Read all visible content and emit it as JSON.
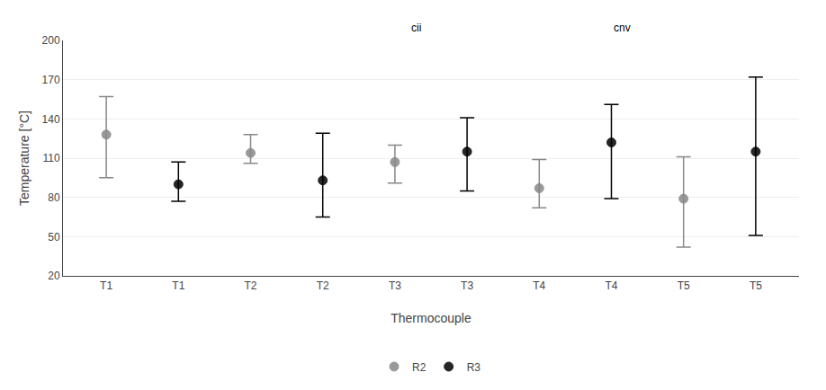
{
  "chart_data": {
    "type": "range",
    "xlabel": "Thermocouple",
    "ylabel": "Temperature [°C]",
    "annotations": [
      "cii",
      "cnv"
    ],
    "categories": [
      "T1",
      "T1",
      "T2",
      "T2",
      "T3",
      "T3",
      "T4",
      "T4",
      "T5",
      "T5"
    ],
    "ylim": [
      20,
      200
    ],
    "yticks": [
      20,
      50,
      80,
      110,
      140,
      170,
      200
    ],
    "grid": true,
    "legend": "bottom",
    "series": [
      {
        "name": "R2",
        "color": "#888888",
        "marker": "circle",
        "values": [
          128,
          null,
          114,
          null,
          107,
          null,
          87,
          null,
          79,
          null
        ],
        "upper": [
          157,
          null,
          128,
          null,
          120,
          null,
          109,
          null,
          111,
          null
        ],
        "lower": [
          95,
          null,
          106,
          null,
          91,
          null,
          72,
          null,
          42,
          null
        ]
      },
      {
        "name": "R3",
        "color": "#000000",
        "marker": "circle",
        "values": [
          null,
          90,
          null,
          93,
          null,
          115,
          null,
          122,
          null,
          115
        ],
        "upper": [
          null,
          107,
          null,
          129,
          null,
          141,
          null,
          151,
          null,
          172
        ],
        "lower": [
          null,
          77,
          null,
          65,
          null,
          85,
          null,
          79,
          null,
          51
        ]
      }
    ]
  }
}
